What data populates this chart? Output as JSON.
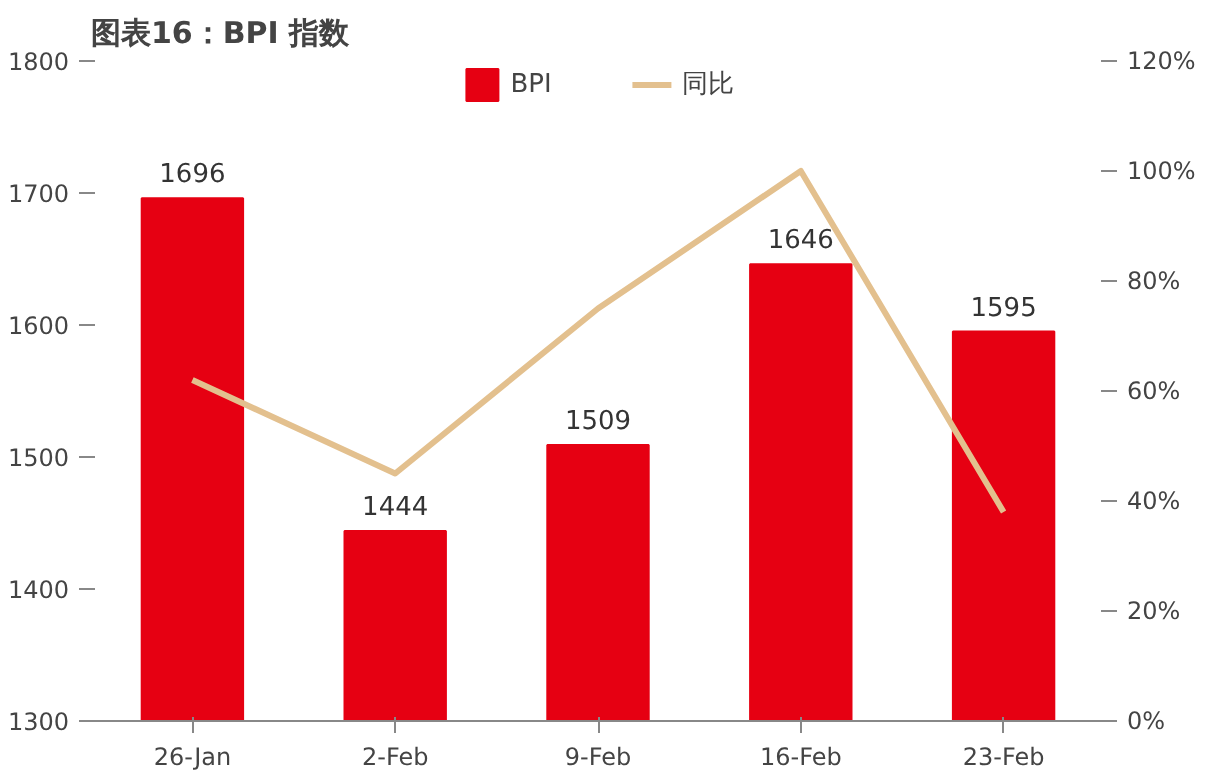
{
  "chart_data": {
    "type": "bar",
    "title": "图表16：BPI 指数",
    "categories": [
      "26-Jan",
      "2-Feb",
      "9-Feb",
      "16-Feb",
      "23-Feb"
    ],
    "series": [
      {
        "name": "BPI",
        "color": "#e60012",
        "values": [
          1696,
          1444,
          1509,
          1646,
          1595
        ],
        "value_labels": [
          "1696",
          "1444",
          "1509",
          "1646",
          "1595"
        ]
      },
      {
        "name": "同比",
        "type": "line",
        "axis": "y2",
        "color": "#e3c08e",
        "values": [
          62,
          45,
          75,
          100,
          38
        ]
      }
    ],
    "ylim": [
      1300,
      1800
    ],
    "yticks": [
      1300,
      1400,
      1500,
      1600,
      1700,
      1800
    ],
    "y2lim": [
      0,
      120
    ],
    "y2ticks": [
      {
        "value": 0,
        "label": "0%"
      },
      {
        "value": 20,
        "label": "20%"
      },
      {
        "value": 40,
        "label": "40%"
      },
      {
        "value": 60,
        "label": "60%"
      },
      {
        "value": 80,
        "label": "80%"
      },
      {
        "value": 100,
        "label": "100%"
      },
      {
        "value": 120,
        "label": "120%"
      }
    ],
    "grid": false,
    "legend": "top",
    "line_style": "solid"
  }
}
